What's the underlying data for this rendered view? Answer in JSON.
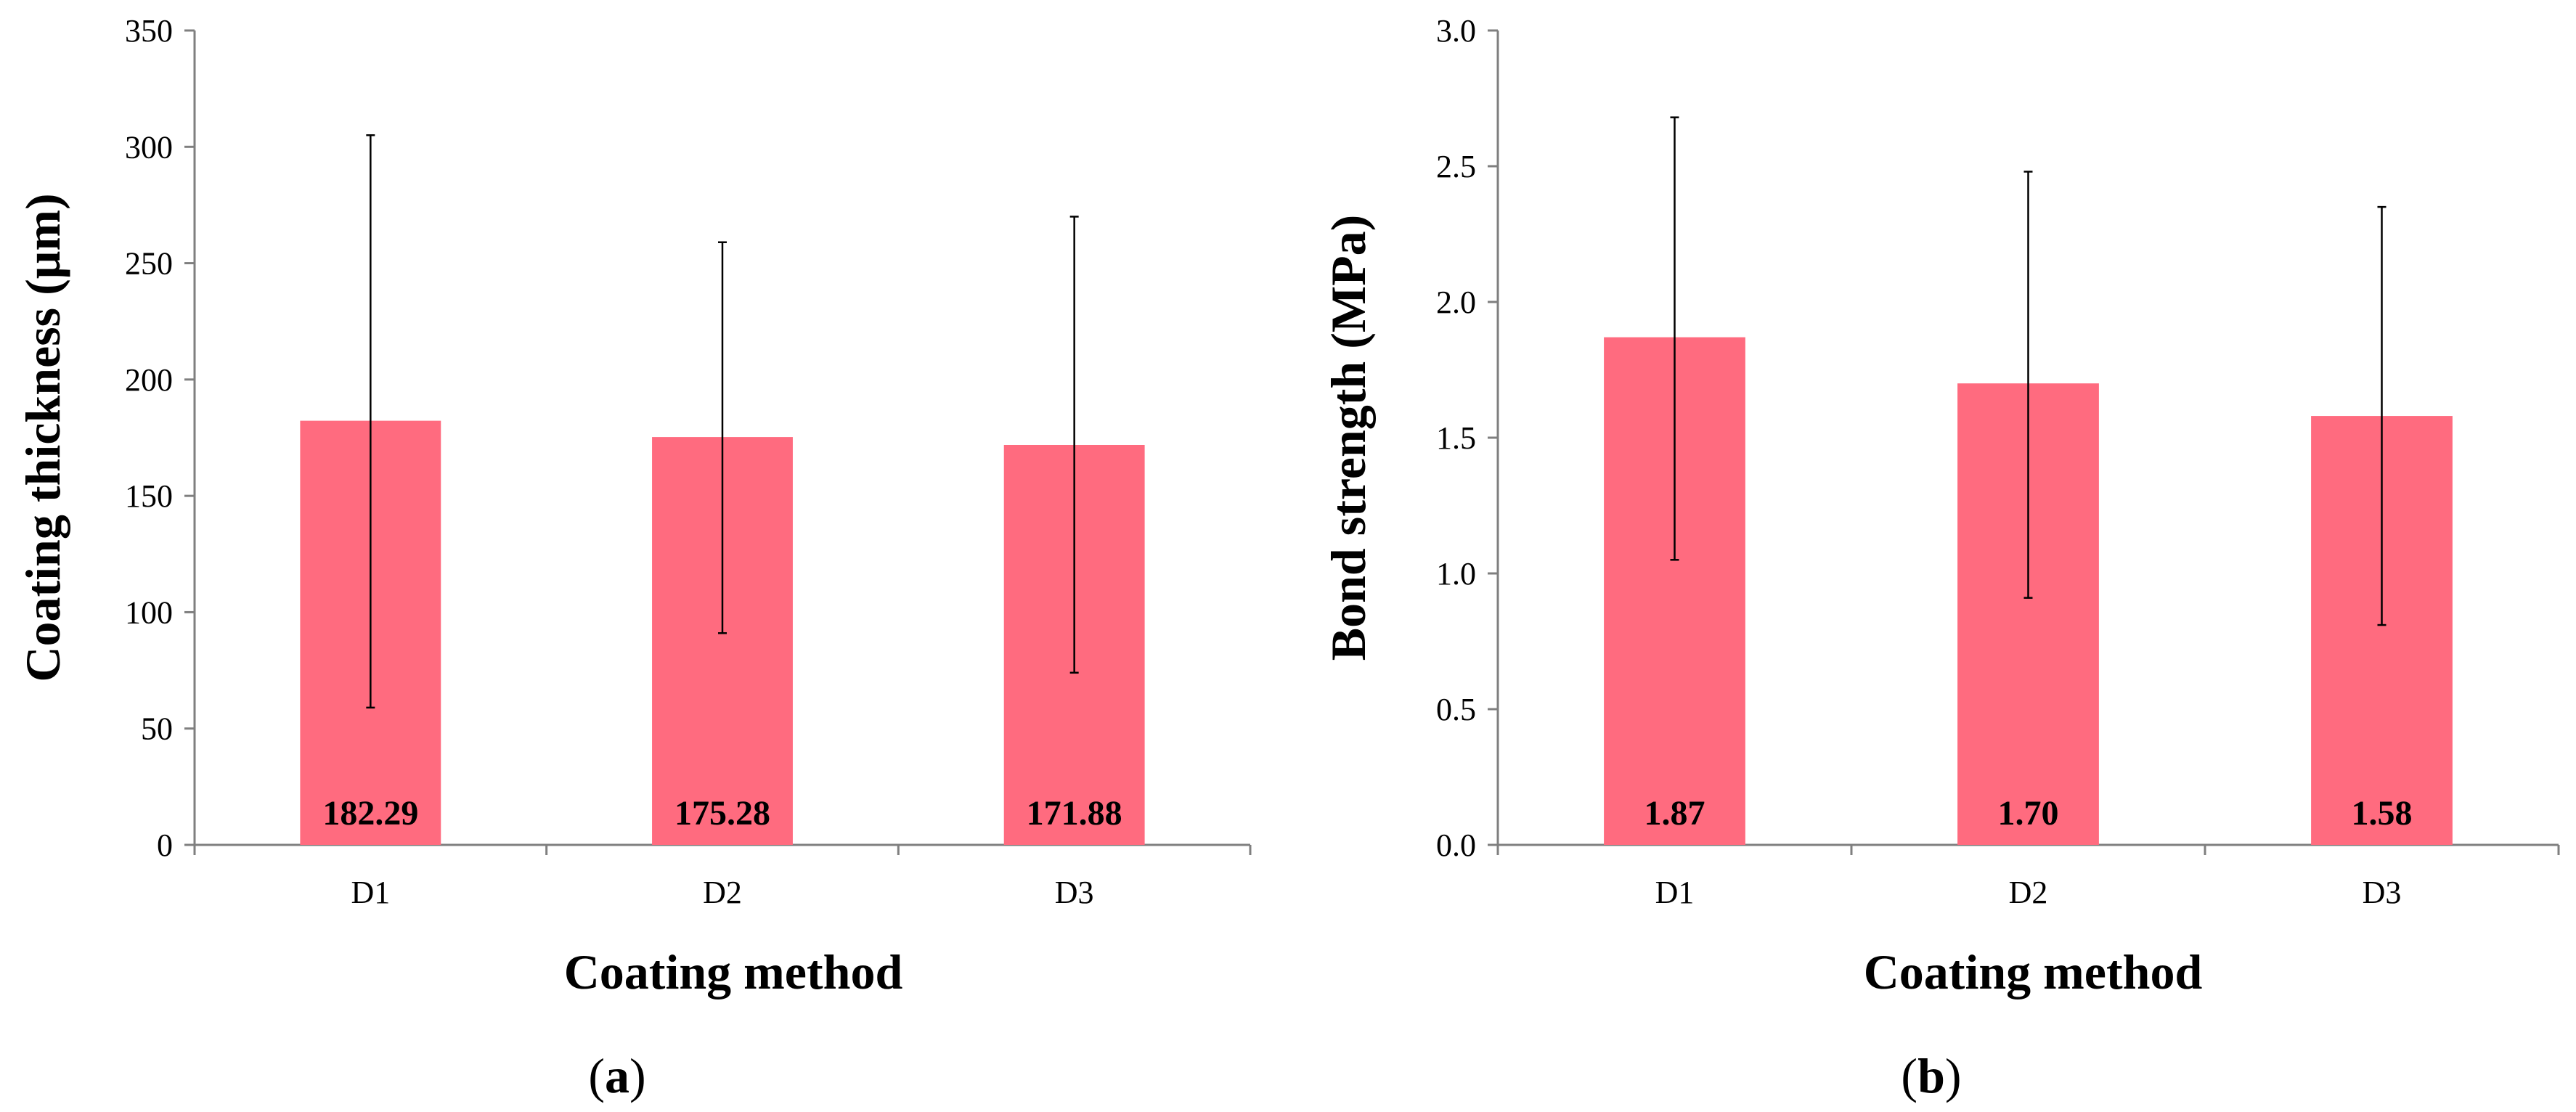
{
  "colors": {
    "bar": "#ff6b7f",
    "axis": "#7f7f7f",
    "error_bar": "#000000"
  },
  "chart_data": [
    {
      "type": "bar",
      "panel": "a",
      "categories": [
        "D1",
        "D2",
        "D3"
      ],
      "values": [
        182.29,
        175.28,
        171.88
      ],
      "value_labels": [
        "182.29",
        "175.28",
        "171.88"
      ],
      "error_low": [
        59,
        91,
        74
      ],
      "error_high": [
        305,
        259,
        270
      ],
      "ylim": [
        0,
        350
      ],
      "yticks": [
        0,
        50,
        100,
        150,
        200,
        250,
        300,
        350
      ],
      "ytick_labels": [
        "0",
        "50",
        "100",
        "150",
        "200",
        "250",
        "300",
        "350"
      ],
      "xlabel": "Coating method",
      "ylabel": "Coating thickness (μm)",
      "grid": false
    },
    {
      "type": "bar",
      "panel": "b",
      "categories": [
        "D1",
        "D2",
        "D3"
      ],
      "values": [
        1.87,
        1.7,
        1.58
      ],
      "value_labels": [
        "1.87",
        "1.70",
        "1.58"
      ],
      "error_low": [
        1.05,
        0.91,
        0.81
      ],
      "error_high": [
        2.68,
        2.48,
        2.35
      ],
      "ylim": [
        0,
        3.0
      ],
      "yticks": [
        0,
        0.5,
        1.0,
        1.5,
        2.0,
        2.5,
        3.0
      ],
      "ytick_labels": [
        "0.0",
        "0.5",
        "1.0",
        "1.5",
        "2.0",
        "2.5",
        "3.0"
      ],
      "xlabel": "Coating method",
      "ylabel": "Bond strength (MPa)",
      "grid": false
    }
  ],
  "panel_labels": [
    {
      "open": "(",
      "letter": "a",
      "close": ")"
    },
    {
      "open": "(",
      "letter": "b",
      "close": ")"
    }
  ]
}
